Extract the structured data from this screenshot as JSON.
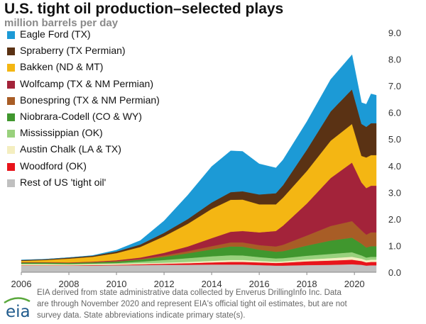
{
  "header": {
    "title": "U.S. tight oil production–selected plays",
    "subtitle": "million barrels per day"
  },
  "footnote": {
    "lines": [
      "EIA derived from state administrative data collected by Enverus DrillingInfo Inc. Data",
      "are through November 2020  and represent EIA's official tight oil estimates, but are not",
      "survey data. State abbreviations indicate primary state(s)."
    ]
  },
  "logo": {
    "text": "eia"
  },
  "chart_data": {
    "type": "area",
    "stacked": true,
    "title": "U.S. tight oil production–selected plays",
    "ylabel": "million barrels per day",
    "xlabel": "",
    "xlim": [
      2006,
      2020.92
    ],
    "ylim": [
      0,
      9
    ],
    "yticks": [
      "0.0",
      "1.0",
      "2.0",
      "3.0",
      "4.0",
      "5.0",
      "6.0",
      "7.0",
      "8.0",
      "9.0"
    ],
    "xticks": [
      "2006",
      "2008",
      "2010",
      "2012",
      "2014",
      "2016",
      "2018",
      "2020"
    ],
    "y_axis_side": "right",
    "grid": false,
    "legend_position": "top-left",
    "x": [
      2006,
      2007,
      2008,
      2009,
      2010,
      2011,
      2012,
      2013,
      2014,
      2014.8,
      2015.3,
      2016,
      2016.7,
      2017,
      2018,
      2019,
      2019.9,
      2020.3,
      2020.5,
      2020.7,
      2020.92
    ],
    "series": [
      {
        "name": "Rest of US 'tight oil'",
        "color": "#c0c0c0",
        "values": [
          0.25,
          0.25,
          0.25,
          0.25,
          0.26,
          0.27,
          0.28,
          0.28,
          0.29,
          0.29,
          0.29,
          0.27,
          0.25,
          0.25,
          0.27,
          0.28,
          0.3,
          0.28,
          0.25,
          0.26,
          0.26
        ]
      },
      {
        "name": "Woodford (OK)",
        "color": "#e8141b",
        "values": [
          0.01,
          0.01,
          0.01,
          0.02,
          0.02,
          0.03,
          0.04,
          0.06,
          0.08,
          0.1,
          0.1,
          0.1,
          0.1,
          0.11,
          0.14,
          0.16,
          0.17,
          0.14,
          0.12,
          0.13,
          0.13
        ]
      },
      {
        "name": "Austin Chalk (LA & TX)",
        "color": "#f4eec0",
        "values": [
          0.05,
          0.05,
          0.04,
          0.04,
          0.04,
          0.04,
          0.04,
          0.05,
          0.06,
          0.07,
          0.07,
          0.06,
          0.05,
          0.05,
          0.07,
          0.09,
          0.11,
          0.09,
          0.08,
          0.08,
          0.08
        ]
      },
      {
        "name": "Mississippian (OK)",
        "color": "#99d17d",
        "values": [
          0.01,
          0.01,
          0.01,
          0.02,
          0.03,
          0.06,
          0.1,
          0.14,
          0.17,
          0.18,
          0.17,
          0.14,
          0.12,
          0.12,
          0.14,
          0.16,
          0.17,
          0.12,
          0.1,
          0.11,
          0.11
        ]
      },
      {
        "name": "Niobrara-Codell (CO & WY)",
        "color": "#40972e",
        "values": [
          0.04,
          0.04,
          0.04,
          0.04,
          0.05,
          0.07,
          0.12,
          0.18,
          0.26,
          0.33,
          0.33,
          0.28,
          0.25,
          0.26,
          0.38,
          0.5,
          0.55,
          0.44,
          0.38,
          0.4,
          0.4
        ]
      },
      {
        "name": "Bonespring (TX & NM Permian)",
        "color": "#a85d26",
        "values": [
          0.01,
          0.01,
          0.01,
          0.01,
          0.02,
          0.03,
          0.05,
          0.08,
          0.12,
          0.15,
          0.16,
          0.17,
          0.2,
          0.24,
          0.38,
          0.55,
          0.62,
          0.5,
          0.48,
          0.52,
          0.52
        ]
      },
      {
        "name": "Wolfcamp (TX & NM Permian)",
        "color": "#a3233a",
        "values": [
          0.01,
          0.01,
          0.01,
          0.02,
          0.03,
          0.05,
          0.1,
          0.18,
          0.3,
          0.4,
          0.43,
          0.48,
          0.58,
          0.72,
          1.2,
          1.8,
          2.2,
          1.8,
          1.75,
          1.75,
          1.75
        ]
      },
      {
        "name": "Bakken (ND & MT)",
        "color": "#f4b613",
        "values": [
          0.05,
          0.08,
          0.14,
          0.18,
          0.27,
          0.4,
          0.62,
          0.85,
          1.1,
          1.2,
          1.18,
          1.05,
          1.0,
          1.05,
          1.22,
          1.4,
          1.45,
          1.0,
          1.15,
          1.15,
          1.15
        ]
      },
      {
        "name": "Spraberry (TX Permian)",
        "color": "#5a3214",
        "values": [
          0.03,
          0.03,
          0.04,
          0.04,
          0.06,
          0.09,
          0.13,
          0.18,
          0.24,
          0.29,
          0.31,
          0.37,
          0.42,
          0.47,
          0.8,
          1.1,
          1.3,
          1.2,
          1.15,
          1.2,
          1.2
        ]
      },
      {
        "name": "Eagle Ford (TX)",
        "color": "#1c9ad6",
        "values": [
          0.0,
          0.0,
          0.0,
          0.01,
          0.05,
          0.15,
          0.45,
          0.9,
          1.35,
          1.55,
          1.5,
          1.15,
          0.95,
          0.95,
          1.05,
          1.2,
          1.3,
          0.8,
          0.85,
          1.1,
          1.05
        ]
      }
    ]
  }
}
